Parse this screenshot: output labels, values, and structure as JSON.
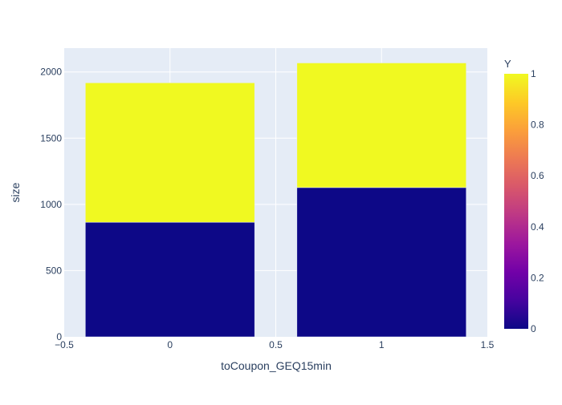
{
  "chart_data": {
    "type": "bar",
    "barmode": "stack",
    "xlabel": "toCoupon_GEQ15min",
    "ylabel": "size",
    "xlim": [
      -0.5,
      1.5
    ],
    "ylim": [
      0,
      2180
    ],
    "x_ticks": [
      -0.5,
      0,
      0.5,
      1,
      1.5
    ],
    "x_tick_labels": [
      "−0.5",
      "0",
      "0.5",
      "1",
      "1.5"
    ],
    "y_ticks": [
      0,
      500,
      1000,
      1500,
      2000
    ],
    "y_tick_labels": [
      "0",
      "500",
      "1000",
      "1500",
      "2000"
    ],
    "bar_width": 0.8,
    "grid": true,
    "plot_bg": "#e5ecf6",
    "bars": [
      {
        "x": 0,
        "y_value": 0,
        "size": 865,
        "color": "#0d0887"
      },
      {
        "x": 0,
        "y_value": 1,
        "size": 1053,
        "color": "#f0f921"
      },
      {
        "x": 1,
        "y_value": 0,
        "size": 1127,
        "color": "#0d0887"
      },
      {
        "x": 1,
        "y_value": 1,
        "size": 941,
        "color": "#f0f921"
      }
    ],
    "colorbar": {
      "title": "Y",
      "range": [
        0,
        1
      ],
      "ticks": [
        0,
        0.2,
        0.4,
        0.6,
        0.8,
        1
      ],
      "tick_labels": [
        "0",
        "0.2",
        "0.4",
        "0.6",
        "0.8",
        "1"
      ],
      "colorscale": [
        "#0d0887",
        "#46039f",
        "#7201a8",
        "#9c179e",
        "#bd3786",
        "#d8576b",
        "#ed7953",
        "#fb9f3a",
        "#fdca26",
        "#f0f921"
      ]
    }
  }
}
